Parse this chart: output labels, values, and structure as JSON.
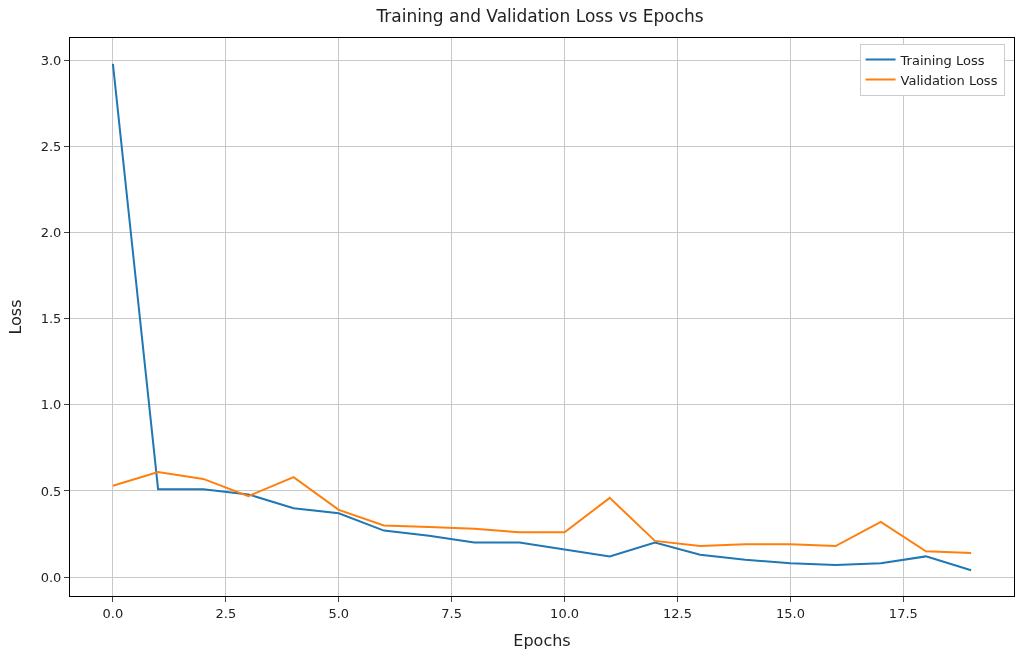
{
  "chart_data": {
    "type": "line",
    "title": "Training and Validation Loss vs Epochs",
    "xlabel": "Epochs",
    "ylabel": "Loss",
    "x": [
      0,
      1,
      2,
      3,
      4,
      5,
      6,
      7,
      8,
      9,
      10,
      11,
      12,
      13,
      14,
      15,
      16,
      17,
      18,
      19
    ],
    "series": [
      {
        "name": "Training Loss",
        "color": "#1f77b4",
        "values": [
          2.98,
          0.51,
          0.51,
          0.48,
          0.4,
          0.37,
          0.27,
          0.24,
          0.2,
          0.2,
          0.16,
          0.12,
          0.2,
          0.13,
          0.1,
          0.08,
          0.07,
          0.08,
          0.12,
          0.04
        ]
      },
      {
        "name": "Validation Loss",
        "color": "#ff7f0e",
        "values": [
          0.53,
          0.61,
          0.57,
          0.47,
          0.58,
          0.39,
          0.3,
          0.29,
          0.28,
          0.26,
          0.26,
          0.46,
          0.21,
          0.18,
          0.19,
          0.19,
          0.18,
          0.32,
          0.15,
          0.14
        ]
      }
    ],
    "xlim": [
      -0.95,
      19.95
    ],
    "ylim": [
      -0.11,
      3.13
    ],
    "xticks": [
      {
        "value": 0,
        "label": "0.0"
      },
      {
        "value": 2.5,
        "label": "2.5"
      },
      {
        "value": 5,
        "label": "5.0"
      },
      {
        "value": 7.5,
        "label": "7.5"
      },
      {
        "value": 10,
        "label": "10.0"
      },
      {
        "value": 12.5,
        "label": "12.5"
      },
      {
        "value": 15,
        "label": "15.0"
      },
      {
        "value": 17.5,
        "label": "17.5"
      }
    ],
    "yticks": [
      {
        "value": 0,
        "label": "0.0"
      },
      {
        "value": 0.5,
        "label": "0.5"
      },
      {
        "value": 1,
        "label": "1.0"
      },
      {
        "value": 1.5,
        "label": "1.5"
      },
      {
        "value": 2,
        "label": "2.0"
      },
      {
        "value": 2.5,
        "label": "2.5"
      },
      {
        "value": 3,
        "label": "3.0"
      }
    ],
    "grid": true,
    "legend": "top right",
    "line_style": "solid",
    "marker": "none"
  }
}
